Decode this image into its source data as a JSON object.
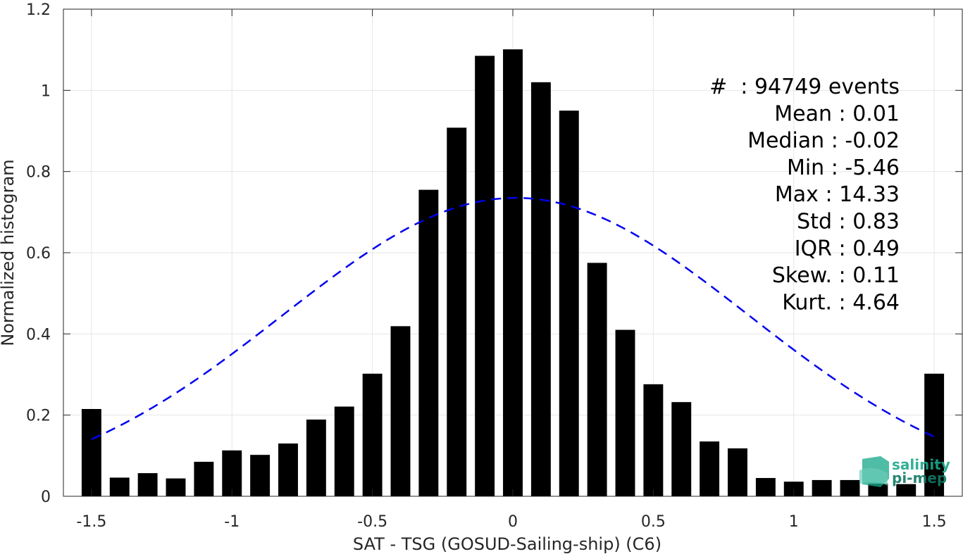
{
  "chart_data": {
    "type": "bar",
    "xlabel": "SAT - TSG (GOSUD-Sailing-ship) (C6)",
    "ylabel": "Normalized histogram",
    "xlim": [
      -1.6,
      1.6
    ],
    "ylim": [
      0,
      1.2
    ],
    "xticks": [
      -1.5,
      -1,
      -0.5,
      0,
      0.5,
      1,
      1.5
    ],
    "xtick_labels": [
      "-1.5",
      "-1",
      "-0.5",
      "0",
      "0.5",
      "1",
      "1.5"
    ],
    "yticks": [
      0,
      0.2,
      0.4,
      0.6,
      0.8,
      1,
      1.2
    ],
    "ytick_labels": [
      "0",
      "0.2",
      "0.4",
      "0.6",
      "0.8",
      "1",
      "1.2"
    ],
    "grid": true,
    "bar_width": 0.07,
    "bar_color": "#000000",
    "x": [
      -1.5,
      -1.4,
      -1.3,
      -1.2,
      -1.1,
      -1.0,
      -0.9,
      -0.8,
      -0.7,
      -0.6,
      -0.5,
      -0.4,
      -0.3,
      -0.2,
      -0.1,
      0.0,
      0.1,
      0.2,
      0.3,
      0.4,
      0.5,
      0.6,
      0.7,
      0.8,
      0.9,
      1.0,
      1.1,
      1.2,
      1.3,
      1.4,
      1.5
    ],
    "values": [
      0.215,
      0.046,
      0.057,
      0.044,
      0.085,
      0.113,
      0.102,
      0.13,
      0.189,
      0.221,
      0.302,
      0.419,
      0.755,
      0.908,
      1.085,
      1.101,
      1.02,
      0.95,
      0.575,
      0.41,
      0.276,
      0.232,
      0.135,
      0.118,
      0.045,
      0.036,
      0.04,
      0.04,
      0.031,
      0.03,
      0.302
    ],
    "fit_curve": {
      "type": "gaussian",
      "mean": 0.01,
      "std": 0.83,
      "peak": 0.735,
      "x_range": [
        -1.5,
        1.5
      ],
      "color": "#0000ee",
      "style": "dashed"
    },
    "stats": [
      "#  : 94749 events",
      "Mean : 0.01",
      "Median : -0.02",
      "Min : -5.46",
      "Max : 14.33",
      "Std : 0.83",
      "IQR : 0.49",
      "Skew. : 0.11",
      "Kurt. : 4.64"
    ]
  },
  "logo": {
    "line1": "salinity",
    "line2": "pi-mep",
    "color": "#1aa88a"
  }
}
